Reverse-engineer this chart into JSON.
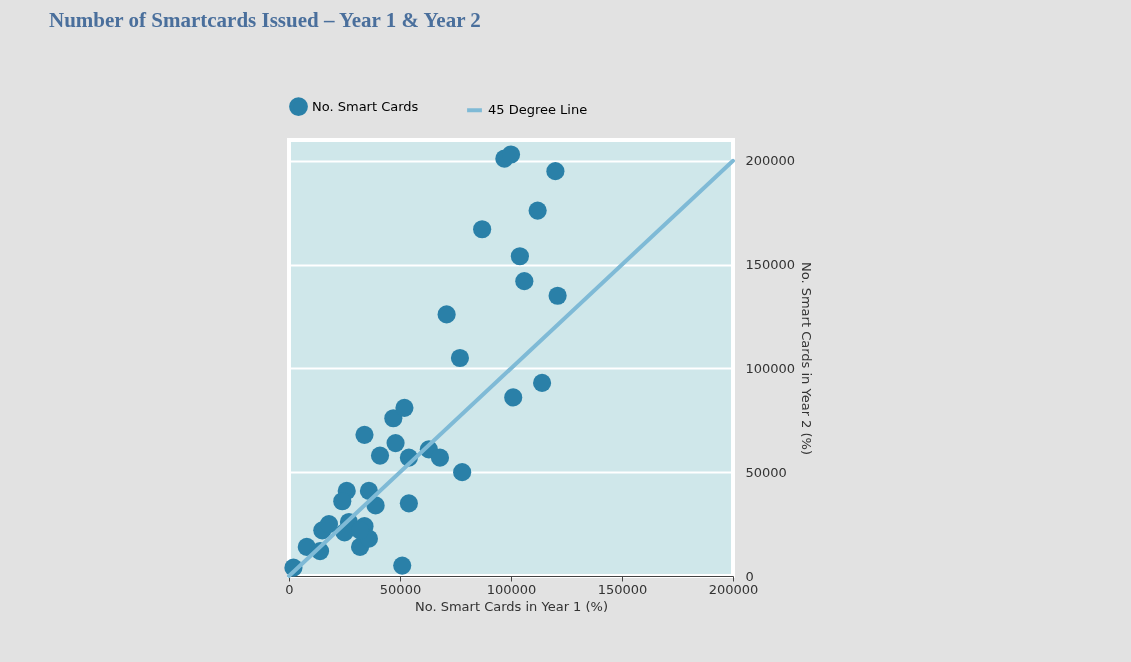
{
  "chart_data": {
    "type": "scatter",
    "title": "Number of Smartcards Issued – Year 1 & Year 2",
    "xlabel": "No. Smart Cards in Year 1 (%)",
    "ylabel": "No. Smart Cards in Year 2 (%)",
    "xlim": [
      0,
      200000
    ],
    "xticks": [
      0,
      50000,
      100000,
      150000,
      200000
    ],
    "ylim": [
      0,
      210000
    ],
    "yticks": [
      0,
      50000,
      100000,
      150000,
      200000
    ],
    "grid": "y",
    "legend": "top",
    "series": [
      {
        "name": "No. Smart Cards",
        "marker": "circle",
        "color": "#2a80a8",
        "x": [
          97000,
          100000,
          120000,
          112000,
          87000,
          104000,
          106000,
          121000,
          71000,
          77000,
          101000,
          114000,
          47000,
          52000,
          34000,
          48000,
          41000,
          54000,
          63000,
          68000,
          78000,
          54000,
          26000,
          36000,
          39000,
          24000,
          27000,
          34000,
          32000,
          25000,
          15000,
          18000,
          8000,
          14000,
          51000,
          2000,
          36000,
          32000
        ],
        "values": [
          201000,
          203000,
          195000,
          176000,
          167000,
          154000,
          142000,
          135000,
          126000,
          105000,
          86000,
          93000,
          76000,
          81000,
          68000,
          64000,
          58000,
          57000,
          61000,
          57000,
          50000,
          35000,
          41000,
          41000,
          34000,
          36000,
          26000,
          24000,
          14000,
          21000,
          22000,
          25000,
          14000,
          12000,
          5000,
          4000,
          18000,
          22000
        ]
      },
      {
        "name": "45 Degree Line",
        "type": "line",
        "color": "#7fbad6",
        "line_style": "solid",
        "x": [
          0,
          200000
        ],
        "values": [
          0,
          200000
        ]
      }
    ]
  }
}
